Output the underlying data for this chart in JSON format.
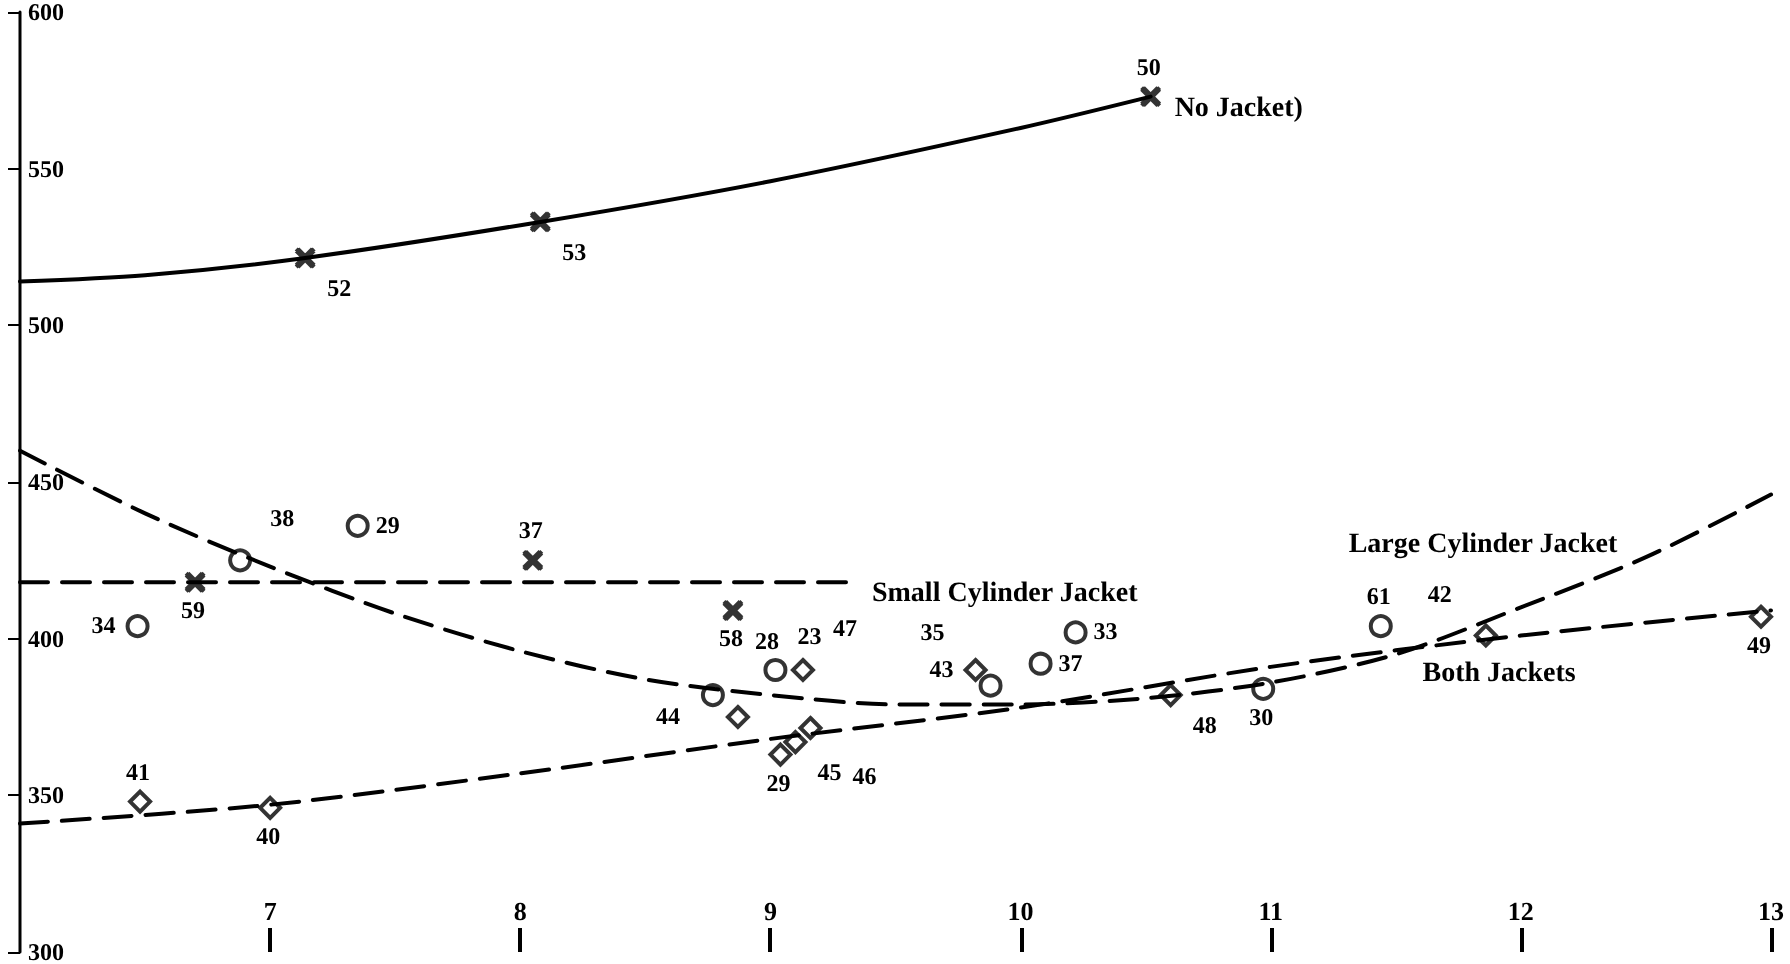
{
  "chart_data": {
    "type": "scatter",
    "xlim": [
      6,
      13
    ],
    "xticks": [
      7,
      8,
      9,
      10,
      11,
      12,
      13
    ],
    "ylim": [
      300,
      600
    ],
    "yticks": [
      300,
      350,
      400,
      450,
      500,
      550,
      600
    ],
    "grid": false,
    "legend": false,
    "series": [
      {
        "type": "line",
        "name": "No Jacket)",
        "color": "#000000",
        "line_style": "solid",
        "x": [
          6,
          6.5,
          7.14,
          8.08,
          9,
          10,
          10.52
        ],
        "values": [
          514,
          516,
          521.5,
          533,
          546,
          563,
          573
        ]
      },
      {
        "marker": "cross",
        "color": "#000000",
        "x": [
          7.14,
          8.08,
          10.52
        ],
        "values": [
          521.5,
          533,
          573
        ]
      },
      {
        "type": "line",
        "name": "Small Cylinder Jacket",
        "color": "#000000",
        "line_style": "dashed",
        "x": [
          6,
          9.31
        ],
        "values": [
          418,
          418
        ]
      },
      {
        "marker": "cross",
        "color": "#000000",
        "x": [
          6.7,
          8.05,
          8.85
        ],
        "values": [
          418,
          425,
          409
        ]
      },
      {
        "type": "line",
        "name": "Large Cylinder Jacket",
        "color": "#000000",
        "line_style": "dashed",
        "x": [
          6,
          6.5,
          7,
          7.5,
          8,
          8.5,
          9,
          9.5,
          10,
          10.5,
          11,
          11.5,
          12,
          12.5,
          13
        ],
        "values": [
          460,
          440,
          423,
          408,
          396,
          387,
          382,
          379,
          379,
          381,
          386,
          395,
          410,
          426,
          446
        ]
      },
      {
        "marker": "circle",
        "color": "#000000",
        "x": [
          6.47,
          6.88,
          7.35,
          8.77,
          9.02,
          9.88,
          10.08,
          10.22,
          10.97,
          11.44
        ],
        "values": [
          404,
          425,
          436,
          382,
          390,
          385,
          392,
          402,
          384,
          404
        ]
      },
      {
        "type": "line",
        "name": "Both Jackets",
        "color": "#000000",
        "line_style": "dashed",
        "x": [
          6,
          7,
          8,
          9,
          10,
          11,
          12,
          13
        ],
        "values": [
          341,
          347,
          357,
          368,
          378,
          391,
          401,
          409
        ]
      },
      {
        "marker": "diamond",
        "color": "#000000",
        "x": [
          6.48,
          7.0,
          8.87,
          9.04,
          9.1,
          9.13,
          9.16,
          9.82,
          10.6,
          11.86,
          12.96
        ],
        "values": [
          348,
          346,
          375,
          363,
          367,
          390,
          371.5,
          390,
          382,
          401,
          407
        ]
      }
    ],
    "annotations": [
      {
        "text": "52",
        "x": 7.14,
        "y": 521.5
      },
      {
        "text": "53",
        "x": 8.08,
        "y": 533
      },
      {
        "text": "50",
        "x": 10.52,
        "y": 573
      },
      {
        "text": "59",
        "x": 6.7,
        "y": 418
      },
      {
        "text": "37",
        "x": 8.05,
        "y": 425
      },
      {
        "text": "58",
        "x": 8.85,
        "y": 409
      },
      {
        "text": "34",
        "x": 6.47,
        "y": 404
      },
      {
        "text": "38",
        "x": 6.88,
        "y": 425
      },
      {
        "text": "29",
        "x": 7.35,
        "y": 436
      },
      {
        "text": "28",
        "x": 8.77,
        "y": 382
      },
      {
        "text": "23",
        "x": 9.02,
        "y": 390
      },
      {
        "text": "35",
        "x": 9.88,
        "y": 385
      },
      {
        "text": "37",
        "x": 10.08,
        "y": 392
      },
      {
        "text": "33",
        "x": 10.22,
        "y": 402
      },
      {
        "text": "30",
        "x": 10.97,
        "y": 384
      },
      {
        "text": "61",
        "x": 11.44,
        "y": 404
      },
      {
        "text": "41",
        "x": 6.48,
        "y": 348
      },
      {
        "text": "40",
        "x": 7.0,
        "y": 346
      },
      {
        "text": "44",
        "x": 8.87,
        "y": 375
      },
      {
        "text": "29",
        "x": 9.04,
        "y": 363
      },
      {
        "text": "45",
        "x": 9.1,
        "y": 367
      },
      {
        "text": "47",
        "x": 9.13,
        "y": 390
      },
      {
        "text": "46",
        "x": 9.16,
        "y": 371.5
      },
      {
        "text": "43",
        "x": 9.82,
        "y": 390
      },
      {
        "text": "48",
        "x": 10.6,
        "y": 382
      },
      {
        "text": "42",
        "x": 11.86,
        "y": 401
      },
      {
        "text": "49",
        "x": 12.96,
        "y": 407
      }
    ]
  }
}
